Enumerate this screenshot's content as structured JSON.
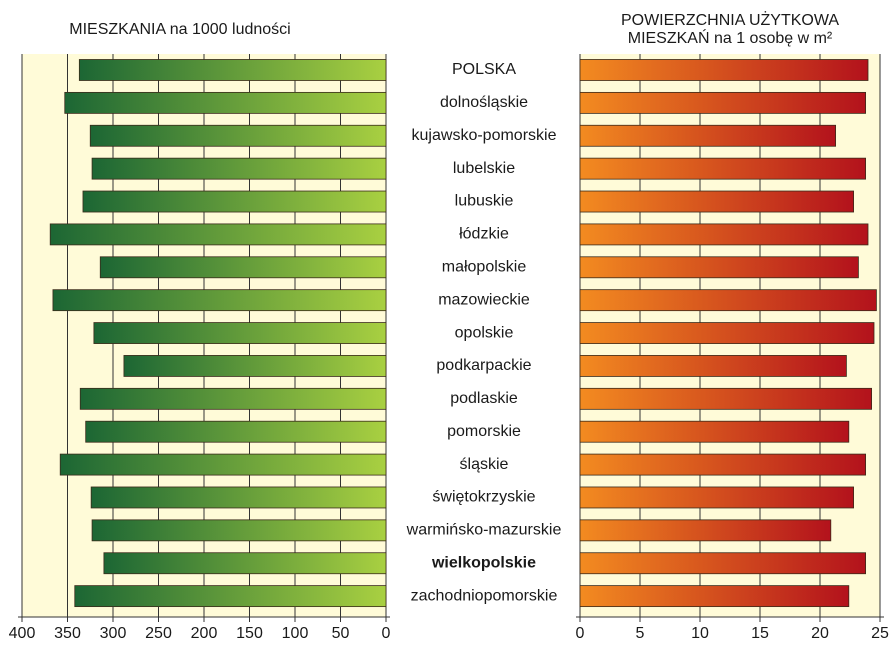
{
  "chart_data": [
    {
      "type": "bar",
      "title": [
        "MIESZKANIA na 1000 ludności"
      ],
      "categories": [
        "POLSKA",
        "dolnośląskie",
        "kujawsko-pomorskie",
        "lubelskie",
        "lubuskie",
        "łódzkie",
        "małopolskie",
        "mazowieckie",
        "opolskie",
        "podkarpackie",
        "podlaskie",
        "pomorskie",
        "śląskie",
        "świętokrzyskie",
        "warmińsko-mazurskie",
        "wielkopolskie",
        "zachodniopomorskie"
      ],
      "values": [
        337,
        353,
        325,
        323,
        333,
        369,
        314,
        366,
        321,
        288,
        336,
        330,
        358,
        324,
        323,
        310,
        342
      ],
      "colors": [
        "#1c6634",
        "#a9d041"
      ],
      "xlim": [
        400,
        0
      ],
      "xticks": [
        400,
        350,
        300,
        250,
        200,
        150,
        100,
        50,
        0
      ],
      "grid": true,
      "highlight": "wielkopolskie"
    },
    {
      "type": "bar",
      "title": [
        "POWIERZCHNIA UŻYTKOWA",
        "MIESZKAŃ na 1 osobę w m²"
      ],
      "values": [
        24.0,
        23.8,
        21.3,
        23.8,
        22.8,
        24.0,
        23.2,
        24.7,
        24.5,
        22.2,
        24.3,
        22.4,
        23.8,
        22.8,
        20.9,
        23.8,
        22.4
      ],
      "colors": [
        "#f38b20",
        "#b3121c"
      ],
      "xlim": [
        0,
        25
      ],
      "xticks": [
        0,
        5,
        10,
        15,
        20,
        25
      ],
      "grid": true
    }
  ]
}
